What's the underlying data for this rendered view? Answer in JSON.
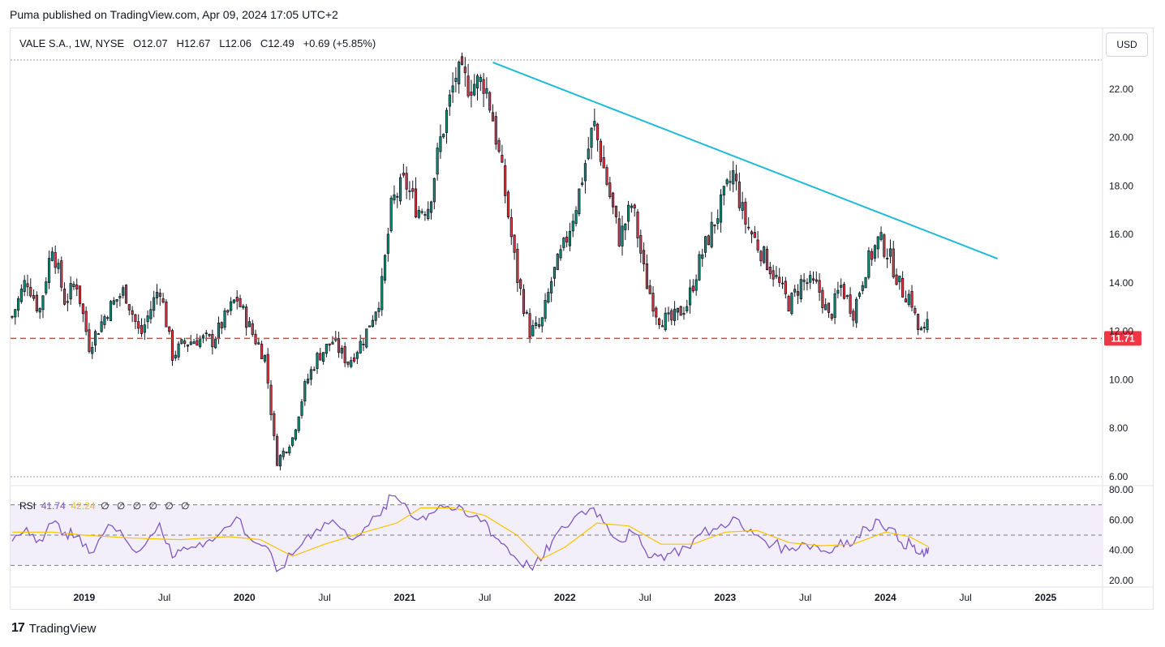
{
  "header": {
    "published": "Puma published on TradingView.com, Apr 09, 2024 17:05 UTC+2"
  },
  "legend": {
    "symbol": "VALE S.A., 1W, NYSE",
    "open": "O12.07",
    "high": "H12.67",
    "low": "L12.06",
    "close": "C12.49",
    "change": "+0.69 (+5.85%)"
  },
  "currency_button": "USD",
  "price_label": {
    "value": "11.71",
    "color": "#f23645"
  },
  "rsi_legend": {
    "name": "RSI",
    "rsi": "41.74",
    "ma": "42.24",
    "extras": "∅ ∅ ∅ ∅ ∅ ∅"
  },
  "brand": {
    "logo": "17",
    "name": "TradingView"
  },
  "colors": {
    "up": "#089981",
    "down": "#f23645",
    "candle": "#131722",
    "trendline": "#1fbad6",
    "support": "#f23645",
    "rsi": "#7e57c2",
    "rsi_ma": "#f7c300",
    "rsi_band": "#f3effa"
  },
  "chart_data": [
    {
      "type": "candlestick",
      "title": "VALE S.A., 1W, NYSE",
      "y_axis": {
        "ticks": [
          "6.00",
          "8.00",
          "10.00",
          "12.00",
          "14.00",
          "16.00",
          "18.00",
          "20.00",
          "22.00"
        ],
        "ylim": [
          6,
          23.2
        ],
        "scale": "linear"
      },
      "x_axis": {
        "ticks": [
          {
            "label": "2019",
            "date": 2019.0,
            "bold": true
          },
          {
            "label": "Jul",
            "date": 2019.5,
            "bold": false
          },
          {
            "label": "2020",
            "date": 2020.0,
            "bold": true
          },
          {
            "label": "Jul",
            "date": 2020.5,
            "bold": false
          },
          {
            "label": "2021",
            "date": 2021.0,
            "bold": true
          },
          {
            "label": "Jul",
            "date": 2021.5,
            "bold": false
          },
          {
            "label": "2022",
            "date": 2022.0,
            "bold": true
          },
          {
            "label": "Jul",
            "date": 2022.5,
            "bold": false
          },
          {
            "label": "2023",
            "date": 2023.0,
            "bold": true
          },
          {
            "label": "Jul",
            "date": 2023.5,
            "bold": false
          },
          {
            "label": "2024",
            "date": 2024.0,
            "bold": true
          },
          {
            "label": "Jul",
            "date": 2024.5,
            "bold": false
          },
          {
            "label": "2025",
            "date": 2025.0,
            "bold": true
          }
        ],
        "xlim": [
          2018.54,
          2025.35
        ]
      },
      "price_path": [
        [
          2018.55,
          12.6
        ],
        [
          2018.64,
          14.2
        ],
        [
          2018.72,
          12.8
        ],
        [
          2018.8,
          15.6
        ],
        [
          2018.88,
          13.2
        ],
        [
          2018.95,
          14.1
        ],
        [
          2019.03,
          11.4
        ],
        [
          2019.15,
          12.9
        ],
        [
          2019.25,
          13.7
        ],
        [
          2019.35,
          11.8
        ],
        [
          2019.47,
          13.9
        ],
        [
          2019.55,
          11.0
        ],
        [
          2019.62,
          11.5
        ],
        [
          2019.72,
          11.7
        ],
        [
          2019.8,
          11.6
        ],
        [
          2019.95,
          13.4
        ],
        [
          2020.05,
          11.9
        ],
        [
          2020.13,
          10.9
        ],
        [
          2020.2,
          6.6
        ],
        [
          2020.3,
          7.6
        ],
        [
          2020.38,
          9.8
        ],
        [
          2020.45,
          10.9
        ],
        [
          2020.55,
          11.6
        ],
        [
          2020.65,
          10.7
        ],
        [
          2020.75,
          11.8
        ],
        [
          2020.85,
          13.5
        ],
        [
          2020.92,
          17.3
        ],
        [
          2021.0,
          18.2
        ],
        [
          2021.08,
          17.0
        ],
        [
          2021.15,
          17.2
        ],
        [
          2021.22,
          19.8
        ],
        [
          2021.32,
          22.6
        ],
        [
          2021.4,
          22.2
        ],
        [
          2021.5,
          22.3
        ],
        [
          2021.55,
          20.8
        ],
        [
          2021.62,
          18.0
        ],
        [
          2021.7,
          14.3
        ],
        [
          2021.78,
          12.0
        ],
        [
          2021.85,
          12.2
        ],
        [
          2021.92,
          14.2
        ],
        [
          2022.0,
          15.6
        ],
        [
          2022.08,
          17.5
        ],
        [
          2022.18,
          20.6
        ],
        [
          2022.26,
          18.2
        ],
        [
          2022.34,
          15.8
        ],
        [
          2022.42,
          17.3
        ],
        [
          2022.5,
          14.2
        ],
        [
          2022.58,
          12.6
        ],
        [
          2022.66,
          12.4
        ],
        [
          2022.76,
          13.1
        ],
        [
          2022.85,
          15.1
        ],
        [
          2022.95,
          16.8
        ],
        [
          2023.05,
          18.5
        ],
        [
          2023.12,
          16.6
        ],
        [
          2023.2,
          15.6
        ],
        [
          2023.3,
          14.4
        ],
        [
          2023.4,
          13.1
        ],
        [
          2023.48,
          14.1
        ],
        [
          2023.58,
          13.8
        ],
        [
          2023.65,
          12.5
        ],
        [
          2023.72,
          13.9
        ],
        [
          2023.8,
          12.8
        ],
        [
          2023.88,
          14.7
        ],
        [
          2023.96,
          15.8
        ],
        [
          2024.02,
          15.2
        ],
        [
          2024.1,
          13.7
        ],
        [
          2024.16,
          13.4
        ],
        [
          2024.2,
          12.1
        ],
        [
          2024.24,
          11.9
        ],
        [
          2024.27,
          12.49
        ]
      ],
      "overlays": {
        "trendline": {
          "from": [
            2021.55,
            23.1
          ],
          "to": [
            2024.7,
            15.0
          ]
        },
        "support": {
          "value": 11.71,
          "style": "dashed"
        }
      }
    },
    {
      "type": "line",
      "title": "RSI",
      "y_axis": {
        "ticks": [
          "20.00",
          "40.00",
          "60.00",
          "80.00"
        ],
        "ylim": [
          20,
          80
        ],
        "bands": [
          30,
          50,
          70
        ]
      },
      "series": [
        {
          "name": "RSI",
          "x": [
            2018.55,
            2018.64,
            2018.72,
            2018.8,
            2018.88,
            2018.95,
            2019.03,
            2019.15,
            2019.25,
            2019.35,
            2019.47,
            2019.55,
            2019.62,
            2019.72,
            2019.8,
            2019.95,
            2020.05,
            2020.13,
            2020.2,
            2020.3,
            2020.38,
            2020.45,
            2020.55,
            2020.65,
            2020.75,
            2020.85,
            2020.92,
            2021.0,
            2021.08,
            2021.15,
            2021.22,
            2021.32,
            2021.4,
            2021.5,
            2021.55,
            2021.62,
            2021.7,
            2021.78,
            2021.85,
            2021.92,
            2022.0,
            2022.08,
            2022.18,
            2022.26,
            2022.34,
            2022.42,
            2022.5,
            2022.58,
            2022.66,
            2022.76,
            2022.85,
            2022.95,
            2023.05,
            2023.12,
            2023.2,
            2023.3,
            2023.4,
            2023.48,
            2023.58,
            2023.65,
            2023.72,
            2023.8,
            2023.88,
            2023.96,
            2024.02,
            2024.1,
            2024.16,
            2024.2,
            2024.24,
            2024.27
          ],
          "values": [
            46,
            55,
            47,
            58,
            52,
            49,
            38,
            57,
            48,
            40,
            58,
            35,
            42,
            45,
            46,
            62,
            46,
            43,
            26,
            37,
            48,
            54,
            60,
            48,
            55,
            63,
            76,
            71,
            60,
            64,
            70,
            67,
            62,
            60,
            50,
            44,
            34,
            29,
            33,
            46,
            55,
            64,
            68,
            57,
            46,
            52,
            40,
            36,
            38,
            42,
            51,
            54,
            62,
            53,
            50,
            44,
            40,
            45,
            42,
            38,
            47,
            44,
            55,
            60,
            55,
            45,
            44,
            38,
            36,
            41.74
          ]
        },
        {
          "name": "RSI-based MA",
          "x": [
            2018.55,
            2018.8,
            2019.0,
            2019.3,
            2019.6,
            2019.9,
            2020.1,
            2020.3,
            2020.5,
            2020.75,
            2020.95,
            2021.1,
            2021.3,
            2021.5,
            2021.7,
            2021.85,
            2022.0,
            2022.2,
            2022.4,
            2022.6,
            2022.8,
            2023.0,
            2023.2,
            2023.4,
            2023.6,
            2023.8,
            2024.0,
            2024.15,
            2024.27
          ],
          "values": [
            52,
            52,
            50,
            48,
            47,
            49,
            47,
            36,
            44,
            52,
            58,
            68,
            68,
            63,
            50,
            34,
            42,
            58,
            56,
            44,
            44,
            52,
            53,
            45,
            43,
            44,
            52,
            49,
            42.24
          ]
        }
      ]
    }
  ]
}
